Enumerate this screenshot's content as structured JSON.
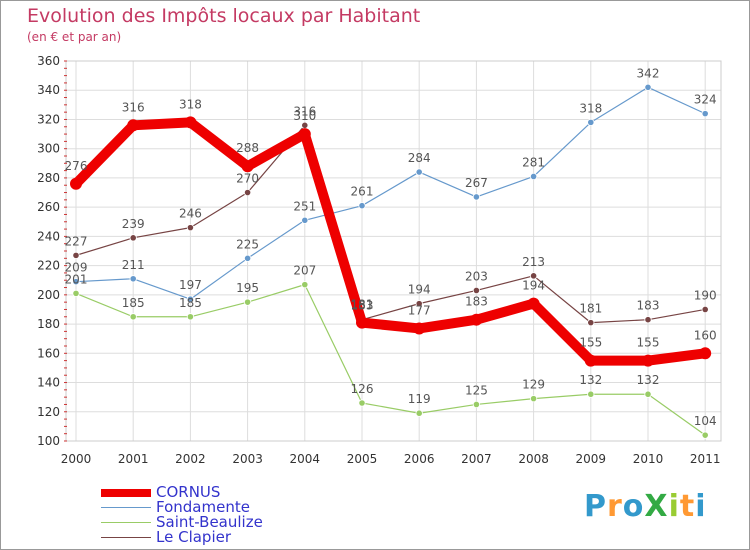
{
  "title": "Evolution des Impôts locaux par Habitant",
  "subtitle": "(en € et par an)",
  "logo_text": "ProXiti",
  "chart_data": {
    "type": "line",
    "title": "Evolution des Impôts locaux par Habitant",
    "subtitle": "(en € et par an)",
    "categories": [
      "2000",
      "2001",
      "2002",
      "2003",
      "2004",
      "2005",
      "2006",
      "2007",
      "2008",
      "2009",
      "2010",
      "2011"
    ],
    "ylim": [
      100,
      360
    ],
    "yticks": [
      100,
      120,
      140,
      160,
      180,
      200,
      220,
      240,
      260,
      280,
      300,
      320,
      340,
      360
    ],
    "grid": true,
    "legend_position": "bottom-left",
    "series": [
      {
        "name": "CORNUS",
        "color": "#ee0000",
        "values": [
          276,
          316,
          318,
          288,
          310,
          181,
          177,
          183,
          194,
          155,
          155,
          160
        ]
      },
      {
        "name": "Fondamente",
        "color": "#6699cc",
        "values": [
          209,
          211,
          197,
          225,
          251,
          261,
          284,
          267,
          281,
          318,
          342,
          324
        ]
      },
      {
        "name": "Saint-Beaulize",
        "color": "#99cc66",
        "values": [
          201,
          185,
          185,
          195,
          207,
          126,
          119,
          125,
          129,
          132,
          132,
          104
        ]
      },
      {
        "name": "Le Clapier",
        "color": "#774444",
        "values": [
          227,
          239,
          246,
          270,
          316,
          183,
          194,
          203,
          213,
          181,
          183,
          190
        ]
      }
    ]
  }
}
